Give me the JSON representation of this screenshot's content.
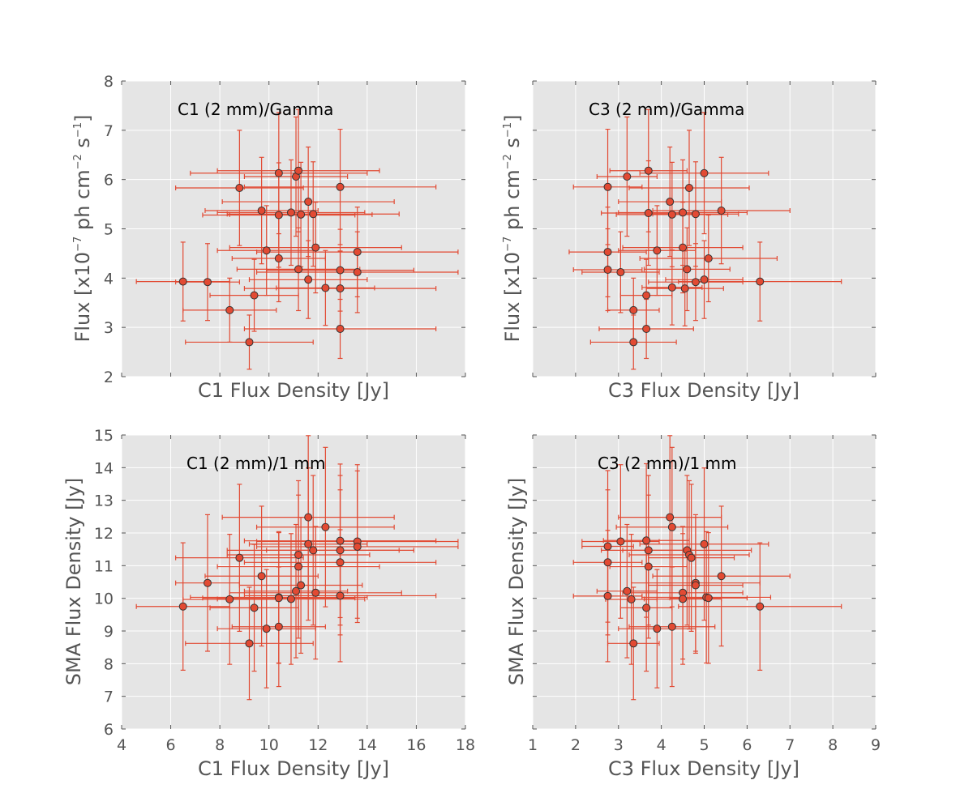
{
  "colors": {
    "background": "#E5E5E5",
    "grid": "#FFFFFF",
    "marker": "#E24A33",
    "errorbar": "#E24A33",
    "marker_edge": "#333333",
    "tick_text": "#555555"
  },
  "chart_data": [
    {
      "type": "scatter",
      "id": "c1-gamma",
      "annotation": "C1 (2 mm)/Gamma",
      "xlabel": "C1 Flux Density [Jy]",
      "ylabel": {
        "main": "Flux [x10",
        "exp1": "−7",
        "mid": " ph cm",
        "exp2": "−2",
        "mid2": " s",
        "exp3": "−1",
        "end": "]"
      },
      "xlim": [
        4,
        18
      ],
      "ylim": [
        2,
        8
      ],
      "xticks": [
        4,
        6,
        8,
        10,
        12,
        14,
        16,
        18
      ],
      "yticks": [
        2,
        3,
        4,
        5,
        6,
        7,
        8
      ],
      "show_xtick_labels": false,
      "show_ytick_labels": true,
      "points": [
        {
          "x": 6.5,
          "y": 3.93,
          "xerr": 1.9,
          "yerr": 0.8
        },
        {
          "x": 7.5,
          "y": 3.92,
          "xerr": 1.3,
          "yerr": 0.78
        },
        {
          "x": 8.4,
          "y": 3.35,
          "xerr": 1.9,
          "yerr": 0.65
        },
        {
          "x": 8.8,
          "y": 5.83,
          "xerr": 2.6,
          "yerr": 1.17
        },
        {
          "x": 9.2,
          "y": 2.7,
          "xerr": 2.6,
          "yerr": 0.55
        },
        {
          "x": 9.4,
          "y": 3.65,
          "xerr": 1.8,
          "yerr": 0.73
        },
        {
          "x": 9.7,
          "y": 5.37,
          "xerr": 2.3,
          "yerr": 1.08
        },
        {
          "x": 9.9,
          "y": 4.56,
          "xerr": 2.0,
          "yerr": 0.91
        },
        {
          "x": 10.4,
          "y": 6.13,
          "xerr": 3.6,
          "yerr": 1.23
        },
        {
          "x": 10.4,
          "y": 5.28,
          "xerr": 3.1,
          "yerr": 1.06
        },
        {
          "x": 10.4,
          "y": 4.4,
          "xerr": 1.9,
          "yerr": 0.88
        },
        {
          "x": 10.9,
          "y": 5.33,
          "xerr": 3.0,
          "yerr": 1.07
        },
        {
          "x": 11.1,
          "y": 6.06,
          "xerr": 2.1,
          "yerr": 1.21
        },
        {
          "x": 11.2,
          "y": 6.18,
          "xerr": 3.3,
          "yerr": 1.24
        },
        {
          "x": 11.3,
          "y": 5.29,
          "xerr": 2.9,
          "yerr": 1.06
        },
        {
          "x": 11.2,
          "y": 4.18,
          "xerr": 2.5,
          "yerr": 0.84
        },
        {
          "x": 11.6,
          "y": 5.55,
          "xerr": 3.5,
          "yerr": 1.11
        },
        {
          "x": 11.6,
          "y": 3.97,
          "xerr": 2.4,
          "yerr": 0.79
        },
        {
          "x": 11.8,
          "y": 5.3,
          "xerr": 3.5,
          "yerr": 1.06
        },
        {
          "x": 11.9,
          "y": 4.62,
          "xerr": 3.5,
          "yerr": 0.92
        },
        {
          "x": 12.3,
          "y": 3.8,
          "xerr": 2.0,
          "yerr": 0.76
        },
        {
          "x": 12.9,
          "y": 5.85,
          "xerr": 3.9,
          "yerr": 1.17
        },
        {
          "x": 12.9,
          "y": 4.16,
          "xerr": 3.0,
          "yerr": 0.83
        },
        {
          "x": 12.9,
          "y": 3.79,
          "xerr": 3.9,
          "yerr": 0.76
        },
        {
          "x": 12.9,
          "y": 2.97,
          "xerr": 3.9,
          "yerr": 0.6
        },
        {
          "x": 13.6,
          "y": 4.53,
          "xerr": 4.1,
          "yerr": 0.91
        },
        {
          "x": 13.6,
          "y": 4.12,
          "xerr": 4.1,
          "yerr": 0.82
        }
      ]
    },
    {
      "type": "scatter",
      "id": "c3-gamma",
      "annotation": "C3 (2 mm)/Gamma",
      "xlabel": "C3 Flux Density [Jy]",
      "ylabel": {
        "main": "Flux [x10",
        "exp1": "−7",
        "mid": " ph cm",
        "exp2": "−2",
        "mid2": " s",
        "exp3": "−1",
        "end": "]"
      },
      "xlim": [
        1,
        9
      ],
      "ylim": [
        2,
        8
      ],
      "xticks": [
        1,
        2,
        3,
        4,
        5,
        6,
        7,
        8,
        9
      ],
      "yticks": [
        2,
        3,
        4,
        5,
        6,
        7,
        8
      ],
      "show_xtick_labels": false,
      "show_ytick_labels": false,
      "points": [
        {
          "x": 2.75,
          "y": 5.85,
          "xerr": 0.8,
          "yerr": 1.17
        },
        {
          "x": 2.75,
          "y": 4.53,
          "xerr": 0.9,
          "yerr": 0.91
        },
        {
          "x": 2.75,
          "y": 4.17,
          "xerr": 0.8,
          "yerr": 0.83
        },
        {
          "x": 3.05,
          "y": 4.12,
          "xerr": 0.9,
          "yerr": 0.82
        },
        {
          "x": 3.2,
          "y": 6.06,
          "xerr": 0.7,
          "yerr": 1.21
        },
        {
          "x": 3.35,
          "y": 3.35,
          "xerr": 0.6,
          "yerr": 0.65
        },
        {
          "x": 3.35,
          "y": 2.7,
          "xerr": 1.0,
          "yerr": 0.55
        },
        {
          "x": 3.65,
          "y": 3.65,
          "xerr": 0.6,
          "yerr": 0.73
        },
        {
          "x": 3.7,
          "y": 6.18,
          "xerr": 0.9,
          "yerr": 1.24
        },
        {
          "x": 3.7,
          "y": 5.32,
          "xerr": 1.1,
          "yerr": 1.06
        },
        {
          "x": 3.65,
          "y": 2.97,
          "xerr": 1.1,
          "yerr": 0.6
        },
        {
          "x": 3.9,
          "y": 4.56,
          "xerr": 0.9,
          "yerr": 0.91
        },
        {
          "x": 4.2,
          "y": 5.55,
          "xerr": 1.2,
          "yerr": 1.11
        },
        {
          "x": 4.25,
          "y": 5.29,
          "xerr": 1.3,
          "yerr": 1.06
        },
        {
          "x": 4.25,
          "y": 3.81,
          "xerr": 0.7,
          "yerr": 0.76
        },
        {
          "x": 4.5,
          "y": 5.33,
          "xerr": 1.5,
          "yerr": 1.07
        },
        {
          "x": 4.5,
          "y": 4.62,
          "xerr": 1.4,
          "yerr": 0.92
        },
        {
          "x": 4.55,
          "y": 3.79,
          "xerr": 0.9,
          "yerr": 0.76
        },
        {
          "x": 4.6,
          "y": 4.18,
          "xerr": 1.0,
          "yerr": 0.84
        },
        {
          "x": 4.65,
          "y": 5.83,
          "xerr": 1.4,
          "yerr": 1.17
        },
        {
          "x": 4.8,
          "y": 5.3,
          "xerr": 1.0,
          "yerr": 1.06
        },
        {
          "x": 4.8,
          "y": 3.92,
          "xerr": 1.1,
          "yerr": 0.78
        },
        {
          "x": 5.0,
          "y": 6.13,
          "xerr": 1.5,
          "yerr": 1.23
        },
        {
          "x": 5.0,
          "y": 3.97,
          "xerr": 0.9,
          "yerr": 0.79
        },
        {
          "x": 5.1,
          "y": 4.4,
          "xerr": 1.6,
          "yerr": 0.88
        },
        {
          "x": 5.4,
          "y": 5.37,
          "xerr": 1.6,
          "yerr": 1.08
        },
        {
          "x": 6.3,
          "y": 3.93,
          "xerr": 1.9,
          "yerr": 0.8
        }
      ]
    },
    {
      "type": "scatter",
      "id": "c1-1mm",
      "annotation": "C1 (2 mm)/1 mm",
      "xlabel": "C1 Flux Density [Jy]",
      "ylabel": {
        "main": "SMA Flux Density [Jy]"
      },
      "xlim": [
        4,
        18
      ],
      "ylim": [
        6,
        15
      ],
      "xticks": [
        4,
        6,
        8,
        10,
        12,
        14,
        16,
        18
      ],
      "yticks": [
        6,
        7,
        8,
        9,
        10,
        11,
        12,
        13,
        14,
        15
      ],
      "show_xtick_labels": true,
      "show_ytick_labels": true,
      "points": [
        {
          "x": 6.5,
          "y": 9.75,
          "xerr": 1.9,
          "yerr": 1.95
        },
        {
          "x": 7.5,
          "y": 10.47,
          "xerr": 1.3,
          "yerr": 2.09
        },
        {
          "x": 8.4,
          "y": 9.97,
          "xerr": 1.9,
          "yerr": 1.99
        },
        {
          "x": 8.8,
          "y": 11.24,
          "xerr": 2.6,
          "yerr": 2.25
        },
        {
          "x": 9.2,
          "y": 8.62,
          "xerr": 2.6,
          "yerr": 1.72
        },
        {
          "x": 9.4,
          "y": 9.71,
          "xerr": 1.8,
          "yerr": 1.94
        },
        {
          "x": 9.7,
          "y": 10.68,
          "xerr": 2.3,
          "yerr": 2.14
        },
        {
          "x": 9.9,
          "y": 9.07,
          "xerr": 2.0,
          "yerr": 1.81
        },
        {
          "x": 10.4,
          "y": 10.03,
          "xerr": 3.6,
          "yerr": 2.01
        },
        {
          "x": 10.4,
          "y": 10.01,
          "xerr": 3.1,
          "yerr": 2.0
        },
        {
          "x": 10.4,
          "y": 9.13,
          "xerr": 1.9,
          "yerr": 1.83
        },
        {
          "x": 10.9,
          "y": 9.98,
          "xerr": 3.0,
          "yerr": 2.0
        },
        {
          "x": 11.1,
          "y": 10.22,
          "xerr": 2.1,
          "yerr": 2.04
        },
        {
          "x": 11.2,
          "y": 10.97,
          "xerr": 3.3,
          "yerr": 2.19
        },
        {
          "x": 11.2,
          "y": 11.33,
          "xerr": 2.9,
          "yerr": 2.27
        },
        {
          "x": 11.3,
          "y": 10.4,
          "xerr": 2.5,
          "yerr": 2.08
        },
        {
          "x": 11.6,
          "y": 12.48,
          "xerr": 3.5,
          "yerr": 2.5
        },
        {
          "x": 11.6,
          "y": 11.66,
          "xerr": 2.4,
          "yerr": 2.33
        },
        {
          "x": 11.8,
          "y": 11.47,
          "xerr": 3.5,
          "yerr": 2.29
        },
        {
          "x": 11.9,
          "y": 10.17,
          "xerr": 3.5,
          "yerr": 2.03
        },
        {
          "x": 12.3,
          "y": 12.18,
          "xerr": 2.8,
          "yerr": 2.44
        },
        {
          "x": 12.9,
          "y": 11.76,
          "xerr": 3.9,
          "yerr": 2.35
        },
        {
          "x": 12.9,
          "y": 11.47,
          "xerr": 3.0,
          "yerr": 2.29
        },
        {
          "x": 12.9,
          "y": 11.1,
          "xerr": 3.9,
          "yerr": 2.22
        },
        {
          "x": 12.9,
          "y": 10.08,
          "xerr": 3.9,
          "yerr": 2.02
        },
        {
          "x": 13.6,
          "y": 11.74,
          "xerr": 4.1,
          "yerr": 2.35
        },
        {
          "x": 13.6,
          "y": 11.58,
          "xerr": 4.1,
          "yerr": 2.32
        }
      ]
    },
    {
      "type": "scatter",
      "id": "c3-1mm",
      "annotation": "C3 (2 mm)/1 mm",
      "xlabel": "C3 Flux Density [Jy]",
      "ylabel": {
        "main": "SMA Flux Density [Jy]"
      },
      "xlim": [
        1,
        9
      ],
      "ylim": [
        6,
        15
      ],
      "xticks": [
        1,
        2,
        3,
        4,
        5,
        6,
        7,
        8,
        9
      ],
      "yticks": [
        6,
        7,
        8,
        9,
        10,
        11,
        12,
        13,
        14,
        15
      ],
      "show_xtick_labels": true,
      "show_ytick_labels": false,
      "points": [
        {
          "x": 2.75,
          "y": 11.59,
          "xerr": 0.6,
          "yerr": 2.32
        },
        {
          "x": 2.75,
          "y": 11.1,
          "xerr": 0.8,
          "yerr": 2.22
        },
        {
          "x": 2.75,
          "y": 10.07,
          "xerr": 0.8,
          "yerr": 2.01
        },
        {
          "x": 3.05,
          "y": 11.74,
          "xerr": 0.9,
          "yerr": 2.35
        },
        {
          "x": 3.2,
          "y": 10.22,
          "xerr": 0.7,
          "yerr": 2.04
        },
        {
          "x": 3.3,
          "y": 9.97,
          "xerr": 0.6,
          "yerr": 1.99
        },
        {
          "x": 3.35,
          "y": 8.62,
          "xerr": 0.6,
          "yerr": 1.72
        },
        {
          "x": 3.65,
          "y": 11.77,
          "xerr": 1.0,
          "yerr": 2.35
        },
        {
          "x": 3.65,
          "y": 9.71,
          "xerr": 0.6,
          "yerr": 1.94
        },
        {
          "x": 3.7,
          "y": 11.47,
          "xerr": 1.1,
          "yerr": 2.29
        },
        {
          "x": 3.7,
          "y": 10.97,
          "xerr": 0.9,
          "yerr": 2.19
        },
        {
          "x": 3.9,
          "y": 9.07,
          "xerr": 0.9,
          "yerr": 1.81
        },
        {
          "x": 4.2,
          "y": 12.48,
          "xerr": 1.2,
          "yerr": 2.5
        },
        {
          "x": 4.25,
          "y": 12.18,
          "xerr": 1.3,
          "yerr": 2.44
        },
        {
          "x": 4.25,
          "y": 9.13,
          "xerr": 1.0,
          "yerr": 1.83
        },
        {
          "x": 4.5,
          "y": 10.17,
          "xerr": 1.4,
          "yerr": 2.03
        },
        {
          "x": 4.5,
          "y": 9.98,
          "xerr": 0.9,
          "yerr": 2.0
        },
        {
          "x": 4.6,
          "y": 11.47,
          "xerr": 1.5,
          "yerr": 2.29
        },
        {
          "x": 4.65,
          "y": 11.33,
          "xerr": 1.4,
          "yerr": 2.27
        },
        {
          "x": 4.7,
          "y": 11.24,
          "xerr": 1.0,
          "yerr": 2.25
        },
        {
          "x": 4.8,
          "y": 10.47,
          "xerr": 1.5,
          "yerr": 2.09
        },
        {
          "x": 4.8,
          "y": 10.4,
          "xerr": 1.1,
          "yerr": 2.08
        },
        {
          "x": 5.0,
          "y": 11.66,
          "xerr": 1.5,
          "yerr": 2.33
        },
        {
          "x": 5.05,
          "y": 10.03,
          "xerr": 1.5,
          "yerr": 2.01
        },
        {
          "x": 5.1,
          "y": 10.01,
          "xerr": 0.9,
          "yerr": 2.0
        },
        {
          "x": 5.4,
          "y": 10.68,
          "xerr": 1.6,
          "yerr": 2.14
        },
        {
          "x": 6.3,
          "y": 9.75,
          "xerr": 1.9,
          "yerr": 1.95
        }
      ]
    }
  ]
}
